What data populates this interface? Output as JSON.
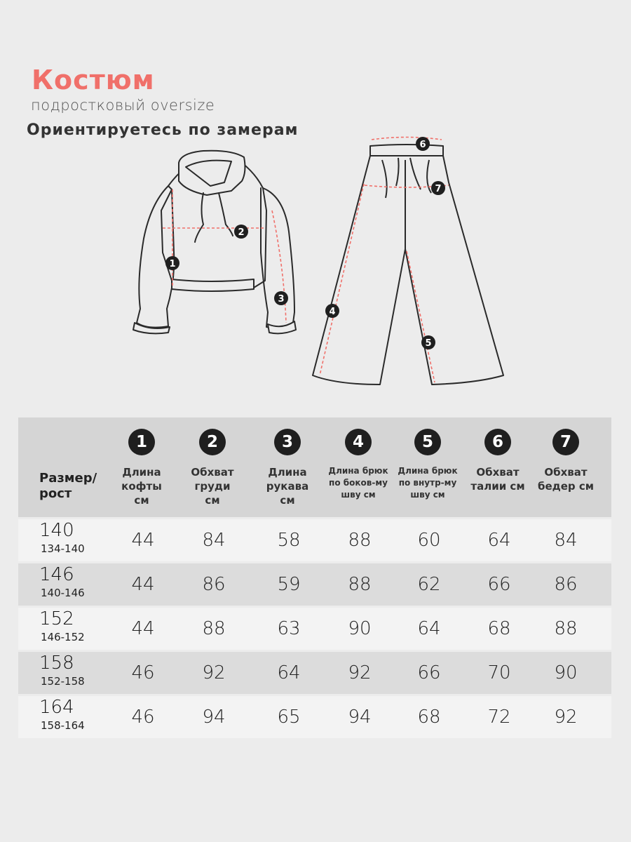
{
  "title": "Костюм",
  "subtitle": "подростковый oversize",
  "heading": "Ориентируетесь по замерам",
  "accent_color": "#f0706a",
  "markers": [
    "1",
    "2",
    "3",
    "4",
    "5",
    "6",
    "7"
  ],
  "table": {
    "size_header": [
      "Размер/",
      "рост"
    ],
    "columns": [
      {
        "num": "1",
        "label": [
          "Длина",
          "кофты",
          "см"
        ]
      },
      {
        "num": "2",
        "label": [
          "Обхват",
          "груди",
          "см"
        ]
      },
      {
        "num": "3",
        "label": [
          "Длина",
          "рукава",
          "см"
        ]
      },
      {
        "num": "4",
        "label": [
          "Длина брюк",
          "по боков-му",
          "шву см"
        ]
      },
      {
        "num": "5",
        "label": [
          "Длина брюк",
          "по внутр-му",
          "шву см"
        ]
      },
      {
        "num": "6",
        "label": [
          "Обхват",
          "талии см"
        ]
      },
      {
        "num": "7",
        "label": [
          "Обхват",
          "бедер см"
        ]
      }
    ],
    "rows": [
      {
        "size": "140",
        "range": "134-140",
        "values": [
          "44",
          "84",
          "58",
          "88",
          "60",
          "64",
          "84"
        ]
      },
      {
        "size": "146",
        "range": "140-146",
        "values": [
          "44",
          "86",
          "59",
          "88",
          "62",
          "66",
          "86"
        ]
      },
      {
        "size": "152",
        "range": "146-152",
        "values": [
          "44",
          "88",
          "63",
          "90",
          "64",
          "68",
          "88"
        ]
      },
      {
        "size": "158",
        "range": "152-158",
        "values": [
          "46",
          "92",
          "64",
          "92",
          "66",
          "70",
          "90"
        ]
      },
      {
        "size": "164",
        "range": "158-164",
        "values": [
          "46",
          "94",
          "65",
          "94",
          "68",
          "72",
          "92"
        ]
      }
    ]
  }
}
